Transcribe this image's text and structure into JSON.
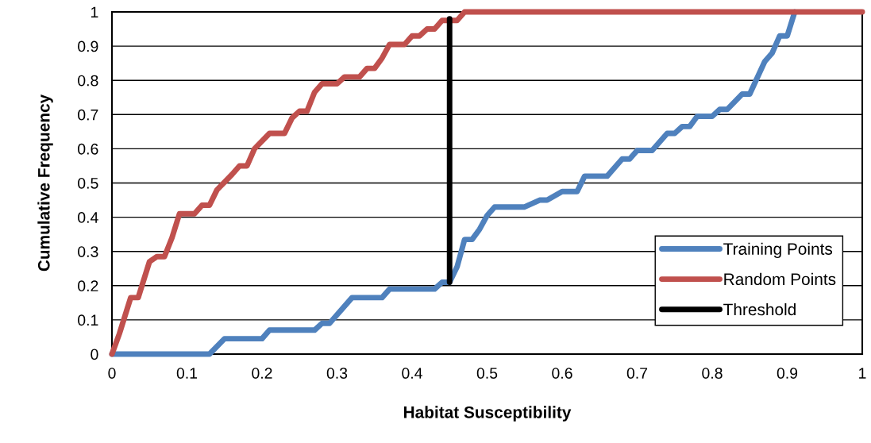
{
  "chart_data": {
    "type": "line",
    "xlabel": "Habitat Susceptibility",
    "ylabel": "Cumulative Frequency",
    "xlim": [
      0,
      1
    ],
    "ylim": [
      0,
      1
    ],
    "xticks": [
      0,
      0.1,
      0.2,
      0.3,
      0.4,
      0.5,
      0.6,
      0.7,
      0.8,
      0.9,
      1
    ],
    "yticks": [
      0,
      0.1,
      0.2,
      0.3,
      0.4,
      0.5,
      0.6,
      0.7,
      0.8,
      0.9,
      1
    ],
    "grid": "y",
    "legend": "bottom right",
    "marker": "none",
    "line_style": "solid",
    "series": [
      {
        "name": "Training Points",
        "color": "#4f81bd",
        "x": [
          0,
          0.13,
          0.15,
          0.2,
          0.21,
          0.27,
          0.28,
          0.29,
          0.32,
          0.36,
          0.37,
          0.43,
          0.44,
          0.45,
          0.46,
          0.47,
          0.48,
          0.49,
          0.5,
          0.51,
          0.55,
          0.57,
          0.58,
          0.6,
          0.62,
          0.63,
          0.66,
          0.68,
          0.69,
          0.7,
          0.72,
          0.74,
          0.75,
          0.76,
          0.77,
          0.78,
          0.8,
          0.81,
          0.82,
          0.84,
          0.85,
          0.87,
          0.88,
          0.89,
          0.9,
          0.91
        ],
        "values": [
          0,
          0,
          0.045,
          0.045,
          0.07,
          0.07,
          0.09,
          0.09,
          0.165,
          0.165,
          0.19,
          0.19,
          0.21,
          0.21,
          0.255,
          0.335,
          0.335,
          0.365,
          0.405,
          0.43,
          0.43,
          0.45,
          0.45,
          0.475,
          0.475,
          0.52,
          0.52,
          0.57,
          0.57,
          0.595,
          0.595,
          0.645,
          0.645,
          0.665,
          0.665,
          0.695,
          0.695,
          0.715,
          0.715,
          0.76,
          0.76,
          0.855,
          0.88,
          0.93,
          0.93,
          1
        ]
      },
      {
        "name": "Random Points",
        "color": "#c0504d",
        "x": [
          0,
          0.01,
          0.025,
          0.035,
          0.05,
          0.06,
          0.07,
          0.08,
          0.09,
          0.11,
          0.12,
          0.13,
          0.14,
          0.16,
          0.17,
          0.18,
          0.19,
          0.21,
          0.23,
          0.24,
          0.25,
          0.26,
          0.27,
          0.28,
          0.3,
          0.31,
          0.33,
          0.34,
          0.35,
          0.36,
          0.37,
          0.39,
          0.4,
          0.41,
          0.42,
          0.43,
          0.44,
          0.46,
          0.47,
          1
        ],
        "values": [
          0,
          0.06,
          0.165,
          0.165,
          0.27,
          0.285,
          0.285,
          0.34,
          0.41,
          0.41,
          0.435,
          0.435,
          0.48,
          0.525,
          0.55,
          0.55,
          0.6,
          0.645,
          0.645,
          0.69,
          0.71,
          0.71,
          0.765,
          0.79,
          0.79,
          0.81,
          0.81,
          0.835,
          0.835,
          0.865,
          0.905,
          0.905,
          0.93,
          0.93,
          0.95,
          0.95,
          0.975,
          0.975,
          1,
          1
        ]
      },
      {
        "name": "Threshold",
        "color": "#000000",
        "x": [
          0.45,
          0.45
        ],
        "values": [
          0.21,
          0.98
        ]
      }
    ]
  }
}
